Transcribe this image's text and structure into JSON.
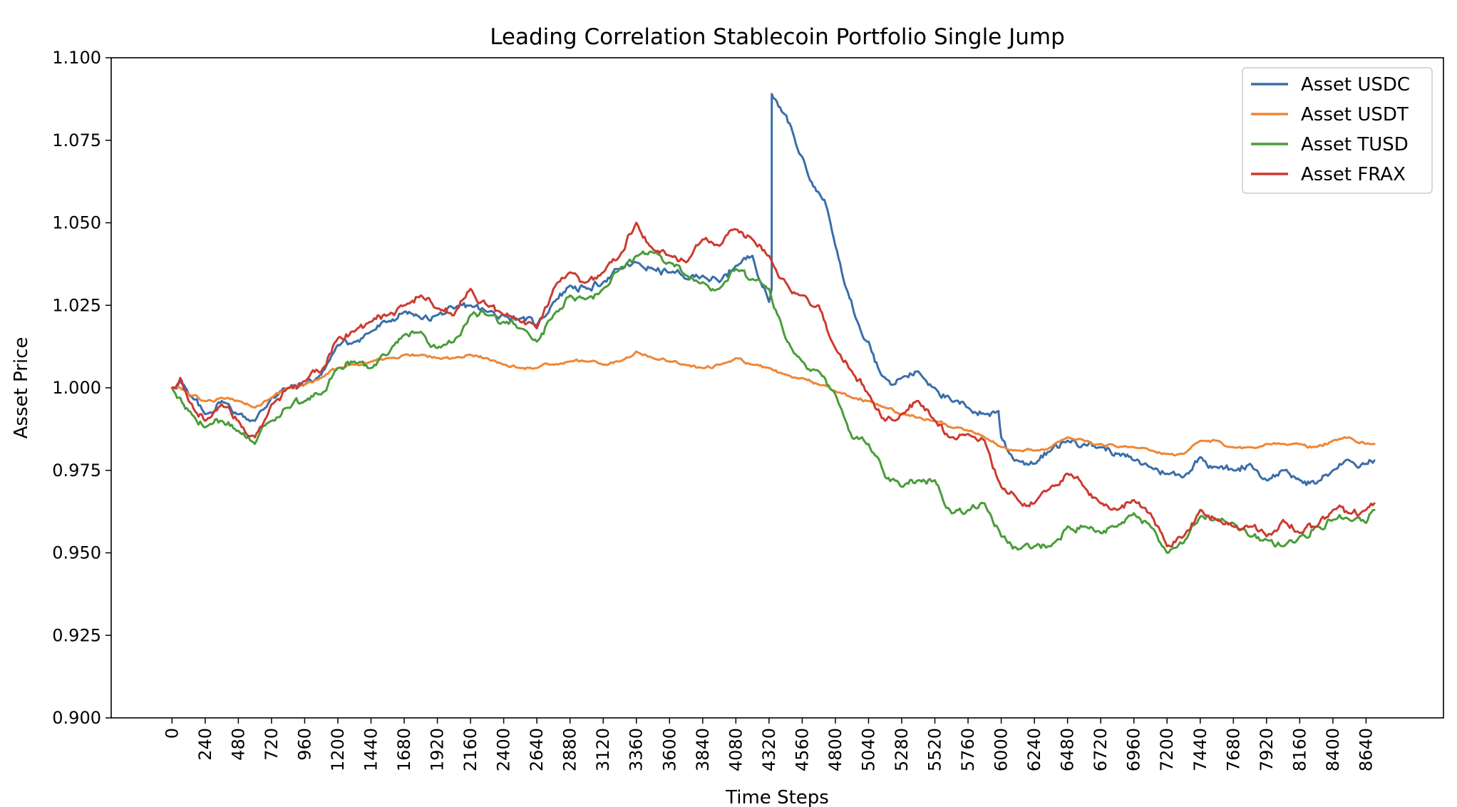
{
  "chart_data": {
    "type": "line",
    "title": "Leading Correlation Stablecoin Portfolio Single Jump",
    "xlabel": "Time Steps",
    "ylabel": "Asset Price",
    "xlim": [
      -440,
      9200
    ],
    "ylim": [
      0.9,
      1.1
    ],
    "grid": false,
    "legend_position": "top-right",
    "x_ticks": [
      0,
      240,
      480,
      720,
      960,
      1200,
      1440,
      1680,
      1920,
      2160,
      2400,
      2640,
      2880,
      3120,
      3360,
      3600,
      3840,
      4080,
      4320,
      4560,
      4800,
      5040,
      5280,
      5520,
      5760,
      6000,
      6240,
      6480,
      6720,
      6960,
      7200,
      7440,
      7680,
      7920,
      8160,
      8400,
      8640
    ],
    "y_ticks": [
      "0.900",
      "0.925",
      "0.950",
      "0.975",
      "1.000",
      "1.025",
      "1.050",
      "1.075",
      "1.100"
    ],
    "series": [
      {
        "name": "Asset USDC",
        "color": "#3a6ea8",
        "x": [
          0,
          60,
          120,
          240,
          360,
          480,
          600,
          720,
          840,
          960,
          1080,
          1200,
          1320,
          1440,
          1560,
          1680,
          1800,
          1920,
          2040,
          2160,
          2280,
          2400,
          2520,
          2640,
          2760,
          2880,
          3000,
          3120,
          3240,
          3360,
          3480,
          3600,
          3720,
          3840,
          3960,
          4080,
          4200,
          4320,
          4339,
          4340,
          4400,
          4480,
          4560,
          4640,
          4720,
          4800,
          4880,
          4960,
          5040,
          5120,
          5200,
          5280,
          5400,
          5520,
          5640,
          5760,
          5880,
          5980,
          6000,
          6060,
          6120,
          6240,
          6360,
          6480,
          6600,
          6720,
          6840,
          6960,
          7080,
          7200,
          7320,
          7440,
          7560,
          7680,
          7800,
          7920,
          8040,
          8160,
          8280,
          8400,
          8520,
          8640,
          8700
        ],
        "y": [
          1.0,
          1.002,
          0.998,
          0.992,
          0.996,
          0.992,
          0.99,
          0.997,
          1.0,
          1.001,
          1.004,
          1.013,
          1.014,
          1.017,
          1.02,
          1.023,
          1.021,
          1.022,
          1.024,
          1.025,
          1.023,
          1.022,
          1.021,
          1.019,
          1.026,
          1.031,
          1.03,
          1.032,
          1.036,
          1.038,
          1.036,
          1.035,
          1.033,
          1.034,
          1.032,
          1.037,
          1.04,
          1.026,
          1.03,
          1.089,
          1.085,
          1.079,
          1.07,
          1.061,
          1.057,
          1.043,
          1.03,
          1.02,
          1.014,
          1.005,
          1.001,
          1.003,
          1.005,
          1.0,
          0.996,
          0.994,
          0.992,
          0.993,
          0.985,
          0.98,
          0.978,
          0.977,
          0.981,
          0.984,
          0.983,
          0.982,
          0.98,
          0.978,
          0.976,
          0.974,
          0.973,
          0.979,
          0.976,
          0.975,
          0.977,
          0.972,
          0.975,
          0.972,
          0.971,
          0.975,
          0.978,
          0.977,
          0.978
        ]
      },
      {
        "name": "Asset USDT",
        "color": "#ef8636",
        "x": [
          0,
          60,
          120,
          240,
          360,
          480,
          600,
          720,
          840,
          960,
          1080,
          1200,
          1320,
          1440,
          1560,
          1680,
          1800,
          1920,
          2040,
          2160,
          2280,
          2400,
          2520,
          2640,
          2760,
          2880,
          3000,
          3120,
          3240,
          3360,
          3480,
          3600,
          3720,
          3840,
          3960,
          4080,
          4200,
          4320,
          4440,
          4560,
          4680,
          4800,
          4920,
          5040,
          5160,
          5280,
          5400,
          5520,
          5640,
          5760,
          5880,
          6000,
          6120,
          6240,
          6360,
          6480,
          6600,
          6720,
          6840,
          6960,
          7080,
          7200,
          7320,
          7440,
          7560,
          7680,
          7800,
          7920,
          8040,
          8160,
          8280,
          8400,
          8520,
          8640,
          8700
        ],
        "y": [
          1.0,
          1.0,
          0.998,
          0.996,
          0.997,
          0.996,
          0.994,
          0.997,
          1.0,
          1.001,
          1.003,
          1.006,
          1.007,
          1.008,
          1.009,
          1.01,
          1.01,
          1.009,
          1.009,
          1.01,
          1.009,
          1.007,
          1.006,
          1.006,
          1.007,
          1.008,
          1.008,
          1.007,
          1.008,
          1.011,
          1.009,
          1.008,
          1.007,
          1.006,
          1.007,
          1.009,
          1.007,
          1.006,
          1.004,
          1.003,
          1.001,
          0.999,
          0.997,
          0.996,
          0.994,
          0.992,
          0.991,
          0.99,
          0.988,
          0.987,
          0.985,
          0.982,
          0.981,
          0.981,
          0.982,
          0.985,
          0.984,
          0.983,
          0.982,
          0.982,
          0.981,
          0.98,
          0.98,
          0.984,
          0.984,
          0.982,
          0.982,
          0.983,
          0.983,
          0.983,
          0.982,
          0.984,
          0.985,
          0.983,
          0.983
        ]
      },
      {
        "name": "Asset TUSD",
        "color": "#4a9c3a",
        "x": [
          0,
          60,
          120,
          240,
          360,
          480,
          600,
          720,
          840,
          960,
          1080,
          1200,
          1320,
          1440,
          1560,
          1680,
          1800,
          1920,
          2040,
          2160,
          2280,
          2400,
          2520,
          2640,
          2760,
          2880,
          3000,
          3120,
          3240,
          3360,
          3480,
          3600,
          3720,
          3840,
          3960,
          4080,
          4200,
          4320,
          4440,
          4560,
          4680,
          4800,
          4920,
          5040,
          5160,
          5280,
          5400,
          5520,
          5640,
          5760,
          5880,
          6000,
          6120,
          6240,
          6360,
          6480,
          6600,
          6720,
          6840,
          6960,
          7080,
          7200,
          7320,
          7440,
          7560,
          7680,
          7800,
          7920,
          8040,
          8160,
          8280,
          8400,
          8520,
          8640,
          8700
        ],
        "y": [
          1.0,
          0.997,
          0.993,
          0.988,
          0.99,
          0.987,
          0.983,
          0.99,
          0.994,
          0.996,
          0.998,
          1.006,
          1.008,
          1.006,
          1.01,
          1.016,
          1.017,
          1.012,
          1.014,
          1.022,
          1.022,
          1.02,
          1.018,
          1.014,
          1.022,
          1.028,
          1.027,
          1.03,
          1.036,
          1.04,
          1.041,
          1.038,
          1.034,
          1.032,
          1.03,
          1.036,
          1.033,
          1.03,
          1.015,
          1.008,
          1.005,
          0.998,
          0.985,
          0.983,
          0.973,
          0.97,
          0.972,
          0.972,
          0.962,
          0.963,
          0.965,
          0.955,
          0.951,
          0.952,
          0.952,
          0.958,
          0.958,
          0.956,
          0.958,
          0.962,
          0.958,
          0.95,
          0.953,
          0.961,
          0.96,
          0.959,
          0.955,
          0.954,
          0.952,
          0.955,
          0.958,
          0.96,
          0.96,
          0.959,
          0.963
        ]
      },
      {
        "name": "Asset FRAX",
        "color": "#cc3a30",
        "x": [
          0,
          60,
          120,
          240,
          360,
          480,
          600,
          720,
          840,
          960,
          1080,
          1200,
          1320,
          1440,
          1560,
          1680,
          1800,
          1920,
          2040,
          2160,
          2280,
          2400,
          2520,
          2640,
          2760,
          2880,
          3000,
          3120,
          3240,
          3360,
          3480,
          3600,
          3720,
          3840,
          3960,
          4080,
          4200,
          4320,
          4440,
          4560,
          4680,
          4800,
          4920,
          5040,
          5160,
          5280,
          5400,
          5520,
          5640,
          5760,
          5880,
          6000,
          6120,
          6240,
          6360,
          6480,
          6600,
          6720,
          6840,
          6960,
          7080,
          7200,
          7320,
          7440,
          7560,
          7680,
          7800,
          7920,
          8040,
          8160,
          8280,
          8400,
          8520,
          8640,
          8700
        ],
        "y": [
          1.0,
          1.003,
          0.996,
          0.99,
          0.995,
          0.99,
          0.985,
          0.995,
          1.0,
          1.002,
          1.005,
          1.015,
          1.017,
          1.02,
          1.022,
          1.025,
          1.028,
          1.024,
          1.022,
          1.03,
          1.025,
          1.022,
          1.02,
          1.018,
          1.03,
          1.035,
          1.032,
          1.035,
          1.04,
          1.05,
          1.042,
          1.04,
          1.038,
          1.045,
          1.043,
          1.048,
          1.045,
          1.04,
          1.032,
          1.028,
          1.025,
          1.012,
          1.005,
          0.998,
          0.99,
          0.992,
          0.996,
          0.99,
          0.985,
          0.986,
          0.984,
          0.97,
          0.966,
          0.965,
          0.97,
          0.974,
          0.97,
          0.965,
          0.963,
          0.966,
          0.962,
          0.952,
          0.955,
          0.963,
          0.96,
          0.958,
          0.958,
          0.955,
          0.96,
          0.956,
          0.958,
          0.963,
          0.962,
          0.963,
          0.965
        ]
      }
    ]
  }
}
